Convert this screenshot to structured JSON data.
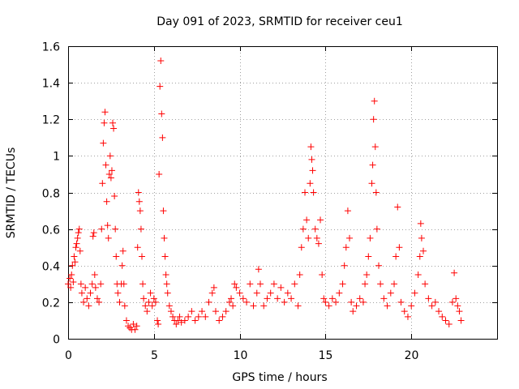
{
  "chart_data": {
    "type": "scatter",
    "title": "Day 091 of 2023, SRMTID for receiver ceu1",
    "xlabel": "GPS time / hours",
    "ylabel": "SRMTID / TECUs",
    "xlim": [
      0,
      25
    ],
    "ylim": [
      0,
      1.6
    ],
    "xticks": [
      0,
      5,
      10,
      15,
      20
    ],
    "xtick_labels": [
      "0",
      "5",
      "10",
      "15",
      "20"
    ],
    "yticks": [
      0,
      0.2,
      0.4,
      0.6,
      0.8,
      1.0,
      1.2,
      1.4,
      1.6
    ],
    "ytick_labels": [
      "0",
      "0.2",
      "0.4",
      "0.6",
      "0.8",
      "1",
      "1.2",
      "1.4",
      "1.6"
    ],
    "grid": true,
    "marker": "+",
    "color": "#ff0000",
    "series": [
      {
        "name": "SRMTID",
        "points": [
          [
            0.0,
            0.3
          ],
          [
            0.1,
            0.33
          ],
          [
            0.15,
            0.28
          ],
          [
            0.2,
            0.35
          ],
          [
            0.25,
            0.4
          ],
          [
            0.3,
            0.31
          ],
          [
            0.35,
            0.45
          ],
          [
            0.4,
            0.42
          ],
          [
            0.45,
            0.5
          ],
          [
            0.5,
            0.52
          ],
          [
            0.55,
            0.55
          ],
          [
            0.6,
            0.58
          ],
          [
            0.65,
            0.6
          ],
          [
            0.7,
            0.48
          ],
          [
            0.75,
            0.3
          ],
          [
            0.8,
            0.25
          ],
          [
            0.9,
            0.2
          ],
          [
            1.0,
            0.28
          ],
          [
            1.1,
            0.22
          ],
          [
            1.2,
            0.18
          ],
          [
            1.3,
            0.25
          ],
          [
            1.4,
            0.3
          ],
          [
            1.45,
            0.56
          ],
          [
            1.5,
            0.58
          ],
          [
            1.55,
            0.35
          ],
          [
            1.6,
            0.28
          ],
          [
            1.7,
            0.22
          ],
          [
            1.8,
            0.2
          ],
          [
            1.9,
            0.3
          ],
          [
            1.95,
            0.6
          ],
          [
            2.0,
            0.85
          ],
          [
            2.05,
            1.07
          ],
          [
            2.1,
            1.18
          ],
          [
            2.15,
            1.24
          ],
          [
            2.2,
            0.95
          ],
          [
            2.25,
            0.75
          ],
          [
            2.3,
            0.62
          ],
          [
            2.35,
            0.55
          ],
          [
            2.4,
            0.9
          ],
          [
            2.45,
            1.0
          ],
          [
            2.5,
            0.88
          ],
          [
            2.55,
            0.92
          ],
          [
            2.6,
            1.18
          ],
          [
            2.65,
            1.15
          ],
          [
            2.7,
            0.78
          ],
          [
            2.75,
            0.6
          ],
          [
            2.8,
            0.45
          ],
          [
            2.85,
            0.3
          ],
          [
            2.9,
            0.25
          ],
          [
            3.0,
            0.2
          ],
          [
            3.1,
            0.3
          ],
          [
            3.15,
            0.4
          ],
          [
            3.2,
            0.48
          ],
          [
            3.25,
            0.3
          ],
          [
            3.3,
            0.18
          ],
          [
            3.4,
            0.1
          ],
          [
            3.5,
            0.07
          ],
          [
            3.6,
            0.06
          ],
          [
            3.7,
            0.05
          ],
          [
            3.8,
            0.08
          ],
          [
            3.9,
            0.05
          ],
          [
            4.0,
            0.07
          ],
          [
            4.05,
            0.5
          ],
          [
            4.1,
            0.8
          ],
          [
            4.15,
            0.75
          ],
          [
            4.2,
            0.7
          ],
          [
            4.25,
            0.6
          ],
          [
            4.3,
            0.45
          ],
          [
            4.35,
            0.3
          ],
          [
            4.4,
            0.22
          ],
          [
            4.5,
            0.18
          ],
          [
            4.6,
            0.15
          ],
          [
            4.7,
            0.2
          ],
          [
            4.8,
            0.25
          ],
          [
            4.9,
            0.18
          ],
          [
            5.0,
            0.22
          ],
          [
            5.1,
            0.2
          ],
          [
            5.2,
            0.1
          ],
          [
            5.25,
            0.08
          ],
          [
            5.3,
            0.9
          ],
          [
            5.35,
            1.38
          ],
          [
            5.4,
            1.52
          ],
          [
            5.45,
            1.23
          ],
          [
            5.5,
            1.1
          ],
          [
            5.55,
            0.7
          ],
          [
            5.6,
            0.55
          ],
          [
            5.65,
            0.45
          ],
          [
            5.7,
            0.35
          ],
          [
            5.75,
            0.3
          ],
          [
            5.8,
            0.25
          ],
          [
            5.9,
            0.18
          ],
          [
            6.0,
            0.15
          ],
          [
            6.1,
            0.12
          ],
          [
            6.2,
            0.1
          ],
          [
            6.3,
            0.08
          ],
          [
            6.4,
            0.1
          ],
          [
            6.5,
            0.12
          ],
          [
            6.6,
            0.09
          ],
          [
            6.8,
            0.1
          ],
          [
            7.0,
            0.12
          ],
          [
            7.2,
            0.15
          ],
          [
            7.4,
            0.1
          ],
          [
            7.6,
            0.12
          ],
          [
            7.8,
            0.15
          ],
          [
            8.0,
            0.12
          ],
          [
            8.2,
            0.2
          ],
          [
            8.4,
            0.25
          ],
          [
            8.5,
            0.28
          ],
          [
            8.6,
            0.15
          ],
          [
            8.8,
            0.1
          ],
          [
            9.0,
            0.12
          ],
          [
            9.2,
            0.15
          ],
          [
            9.4,
            0.2
          ],
          [
            9.5,
            0.22
          ],
          [
            9.6,
            0.18
          ],
          [
            9.7,
            0.3
          ],
          [
            9.8,
            0.28
          ],
          [
            10.0,
            0.25
          ],
          [
            10.2,
            0.22
          ],
          [
            10.4,
            0.2
          ],
          [
            10.6,
            0.3
          ],
          [
            10.8,
            0.18
          ],
          [
            11.0,
            0.25
          ],
          [
            11.1,
            0.38
          ],
          [
            11.2,
            0.3
          ],
          [
            11.4,
            0.18
          ],
          [
            11.6,
            0.22
          ],
          [
            11.8,
            0.25
          ],
          [
            12.0,
            0.3
          ],
          [
            12.2,
            0.22
          ],
          [
            12.4,
            0.28
          ],
          [
            12.6,
            0.2
          ],
          [
            12.8,
            0.25
          ],
          [
            13.0,
            0.22
          ],
          [
            13.2,
            0.3
          ],
          [
            13.4,
            0.18
          ],
          [
            13.5,
            0.35
          ],
          [
            13.6,
            0.5
          ],
          [
            13.7,
            0.6
          ],
          [
            13.8,
            0.8
          ],
          [
            13.9,
            0.65
          ],
          [
            14.0,
            0.55
          ],
          [
            14.1,
            0.85
          ],
          [
            14.15,
            1.05
          ],
          [
            14.2,
            0.98
          ],
          [
            14.25,
            0.92
          ],
          [
            14.3,
            0.8
          ],
          [
            14.4,
            0.6
          ],
          [
            14.5,
            0.55
          ],
          [
            14.6,
            0.52
          ],
          [
            14.7,
            0.65
          ],
          [
            14.8,
            0.35
          ],
          [
            14.9,
            0.22
          ],
          [
            15.0,
            0.2
          ],
          [
            15.2,
            0.18
          ],
          [
            15.4,
            0.22
          ],
          [
            15.6,
            0.2
          ],
          [
            15.8,
            0.25
          ],
          [
            16.0,
            0.3
          ],
          [
            16.1,
            0.4
          ],
          [
            16.2,
            0.5
          ],
          [
            16.3,
            0.7
          ],
          [
            16.4,
            0.55
          ],
          [
            16.5,
            0.2
          ],
          [
            16.6,
            0.15
          ],
          [
            16.8,
            0.18
          ],
          [
            17.0,
            0.22
          ],
          [
            17.2,
            0.2
          ],
          [
            17.3,
            0.3
          ],
          [
            17.4,
            0.35
          ],
          [
            17.5,
            0.45
          ],
          [
            17.6,
            0.55
          ],
          [
            17.7,
            0.85
          ],
          [
            17.75,
            0.95
          ],
          [
            17.8,
            1.2
          ],
          [
            17.85,
            1.3
          ],
          [
            17.9,
            1.05
          ],
          [
            17.95,
            0.8
          ],
          [
            18.0,
            0.6
          ],
          [
            18.1,
            0.4
          ],
          [
            18.2,
            0.3
          ],
          [
            18.4,
            0.22
          ],
          [
            18.6,
            0.18
          ],
          [
            18.8,
            0.25
          ],
          [
            19.0,
            0.3
          ],
          [
            19.1,
            0.45
          ],
          [
            19.2,
            0.72
          ],
          [
            19.3,
            0.5
          ],
          [
            19.4,
            0.2
          ],
          [
            19.6,
            0.15
          ],
          [
            19.8,
            0.12
          ],
          [
            20.0,
            0.18
          ],
          [
            20.2,
            0.25
          ],
          [
            20.4,
            0.35
          ],
          [
            20.5,
            0.45
          ],
          [
            20.55,
            0.63
          ],
          [
            20.6,
            0.55
          ],
          [
            20.7,
            0.48
          ],
          [
            20.8,
            0.3
          ],
          [
            21.0,
            0.22
          ],
          [
            21.2,
            0.18
          ],
          [
            21.4,
            0.2
          ],
          [
            21.6,
            0.15
          ],
          [
            21.8,
            0.12
          ],
          [
            22.0,
            0.1
          ],
          [
            22.2,
            0.08
          ],
          [
            22.4,
            0.2
          ],
          [
            22.5,
            0.36
          ],
          [
            22.6,
            0.22
          ],
          [
            22.7,
            0.18
          ],
          [
            22.8,
            0.15
          ],
          [
            22.9,
            0.1
          ]
        ]
      }
    ]
  }
}
